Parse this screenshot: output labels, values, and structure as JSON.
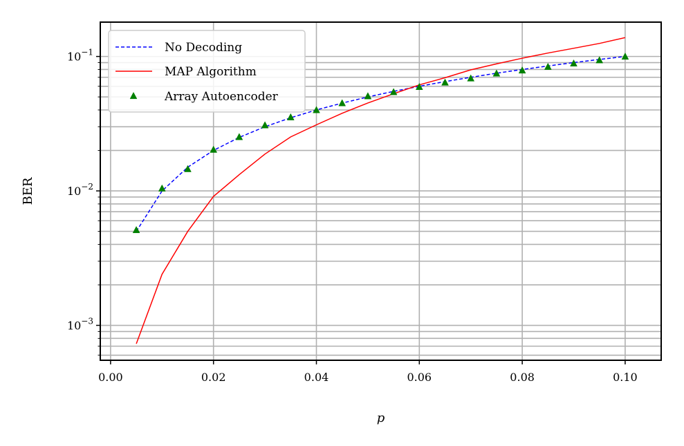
{
  "chart_data": {
    "type": "line",
    "title": "",
    "xlabel": "p",
    "ylabel": "BER",
    "xlim": [
      -0.002,
      0.107
    ],
    "ylim": [
      0.00055,
      0.18
    ],
    "yscale": "log",
    "grid": true,
    "legend_position": "top-left",
    "x_ticks": [
      "0.00",
      "0.02",
      "0.04",
      "0.06",
      "0.08",
      "0.10"
    ],
    "x_tick_values": [
      0,
      0.02,
      0.04,
      0.06,
      0.08,
      0.1
    ],
    "y_ticks": [
      {
        "base": "10",
        "exp": "−3",
        "value": 0.001
      },
      {
        "base": "10",
        "exp": "−2",
        "value": 0.01
      },
      {
        "base": "10",
        "exp": "−1",
        "value": 0.1
      }
    ],
    "series": [
      {
        "name": "No Decoding",
        "style": "dashed",
        "color": "#0000ff",
        "x": [
          0.005,
          0.01,
          0.015,
          0.02,
          0.025,
          0.03,
          0.035,
          0.04,
          0.045,
          0.05,
          0.055,
          0.06,
          0.065,
          0.07,
          0.075,
          0.08,
          0.085,
          0.09,
          0.095,
          0.1
        ],
        "y": [
          0.005,
          0.01,
          0.015,
          0.02,
          0.025,
          0.03,
          0.035,
          0.04,
          0.045,
          0.05,
          0.055,
          0.06,
          0.065,
          0.07,
          0.075,
          0.08,
          0.085,
          0.09,
          0.095,
          0.1
        ]
      },
      {
        "name": "MAP Algorithm",
        "style": "solid",
        "color": "#ff0000",
        "x": [
          0.005,
          0.01,
          0.015,
          0.02,
          0.025,
          0.03,
          0.035,
          0.04,
          0.045,
          0.05,
          0.055,
          0.06,
          0.065,
          0.07,
          0.075,
          0.08,
          0.085,
          0.09,
          0.095,
          0.1
        ],
        "y": [
          0.00073,
          0.0024,
          0.005,
          0.0091,
          0.0132,
          0.0188,
          0.0252,
          0.031,
          0.0378,
          0.0451,
          0.0528,
          0.0615,
          0.0695,
          0.0795,
          0.088,
          0.097,
          0.106,
          0.115,
          0.125,
          0.138
        ]
      },
      {
        "name": "Array Autoencoder",
        "style": "markers",
        "color": "#008000",
        "x": [
          0.005,
          0.01,
          0.015,
          0.02,
          0.025,
          0.03,
          0.035,
          0.04,
          0.045,
          0.05,
          0.055,
          0.06,
          0.065,
          0.07,
          0.075,
          0.08,
          0.085,
          0.09,
          0.095,
          0.1
        ],
        "y": [
          0.0051,
          0.0104,
          0.0145,
          0.0202,
          0.0251,
          0.0307,
          0.0352,
          0.0398,
          0.0448,
          0.0505,
          0.0542,
          0.0592,
          0.0638,
          0.0685,
          0.0745,
          0.0785,
          0.0835,
          0.0885,
          0.0935,
          0.0995
        ]
      }
    ]
  }
}
